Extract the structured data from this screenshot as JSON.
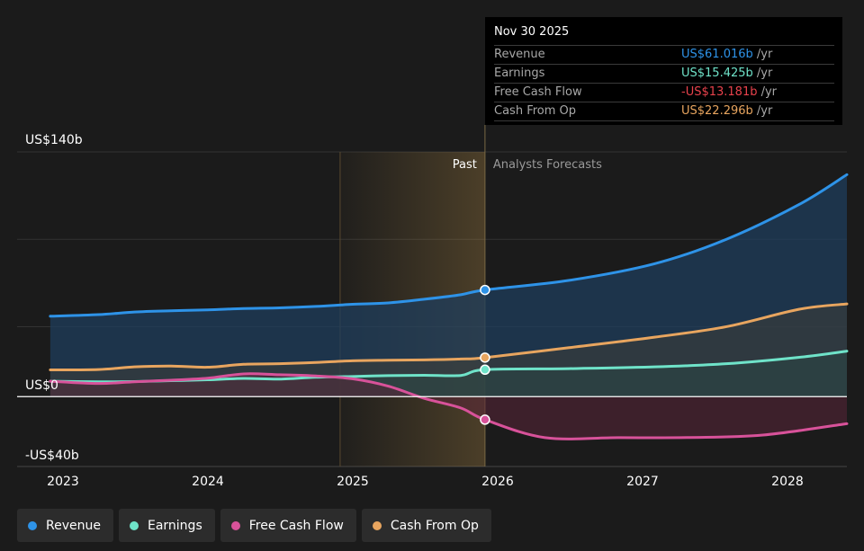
{
  "chart_data": {
    "type": "area",
    "x_ticks": [
      "2023",
      "2024",
      "2025",
      "2026",
      "2027",
      "2028"
    ],
    "y_ticks": [
      "US$140b",
      "US$0",
      "-US$40b"
    ],
    "ylim": [
      -40,
      140
    ],
    "past_label": "Past",
    "forecast_label": "Analysts Forecasts",
    "divider_date": "2025-11-30",
    "past_band_start": "2024-11-30",
    "series": [
      {
        "name": "Revenue",
        "color": "#2e93e8",
        "points": [
          [
            "2022-11-30",
            46.0
          ],
          [
            "2023-03-31",
            46.9
          ],
          [
            "2023-06-30",
            48.4
          ],
          [
            "2023-09-30",
            49.1
          ],
          [
            "2023-12-31",
            49.6
          ],
          [
            "2024-03-31",
            50.4
          ],
          [
            "2024-06-30",
            50.8
          ],
          [
            "2024-09-30",
            51.6
          ],
          [
            "2024-12-31",
            52.8
          ],
          [
            "2025-03-31",
            53.6
          ],
          [
            "2025-06-30",
            55.7
          ],
          [
            "2025-09-30",
            58.3
          ],
          [
            "2025-11-30",
            61.0
          ],
          [
            "2026-06-30",
            66.5
          ],
          [
            "2027-01-31",
            76.0
          ],
          [
            "2027-07-31",
            90.0
          ],
          [
            "2028-01-31",
            110.0
          ],
          [
            "2028-05-31",
            127.0
          ]
        ]
      },
      {
        "name": "Earnings",
        "color": "#6fe3c9",
        "points": [
          [
            "2022-11-30",
            8.8
          ],
          [
            "2023-03-31",
            8.5
          ],
          [
            "2023-06-30",
            8.6
          ],
          [
            "2023-09-30",
            9.1
          ],
          [
            "2023-12-31",
            9.6
          ],
          [
            "2024-03-31",
            10.4
          ],
          [
            "2024-06-30",
            10.0
          ],
          [
            "2024-09-30",
            11.1
          ],
          [
            "2024-12-31",
            11.5
          ],
          [
            "2025-03-31",
            12.0
          ],
          [
            "2025-06-30",
            12.2
          ],
          [
            "2025-09-30",
            12.1
          ],
          [
            "2025-11-30",
            15.4
          ],
          [
            "2026-06-30",
            16.0
          ],
          [
            "2027-01-31",
            17.0
          ],
          [
            "2027-07-31",
            18.8
          ],
          [
            "2028-01-31",
            22.5
          ],
          [
            "2028-05-31",
            26.0
          ]
        ]
      },
      {
        "name": "Free Cash Flow",
        "color": "#d8529a",
        "points": [
          [
            "2022-11-30",
            8.8
          ],
          [
            "2023-03-31",
            7.5
          ],
          [
            "2023-06-30",
            8.5
          ],
          [
            "2023-09-30",
            9.4
          ],
          [
            "2023-12-31",
            10.5
          ],
          [
            "2024-03-31",
            13.0
          ],
          [
            "2024-06-30",
            12.5
          ],
          [
            "2024-09-30",
            11.8
          ],
          [
            "2024-12-31",
            10.2
          ],
          [
            "2025-03-31",
            6.0
          ],
          [
            "2025-06-30",
            -1.0
          ],
          [
            "2025-09-30",
            -6.5
          ],
          [
            "2025-11-30",
            -13.2
          ],
          [
            "2026-04-30",
            -23.5
          ],
          [
            "2026-10-31",
            -23.5
          ],
          [
            "2027-04-30",
            -23.4
          ],
          [
            "2027-10-31",
            -22.0
          ],
          [
            "2028-05-31",
            -15.5
          ]
        ]
      },
      {
        "name": "Cash From Op",
        "color": "#e8a55f",
        "points": [
          [
            "2022-11-30",
            15.3
          ],
          [
            "2023-03-31",
            15.5
          ],
          [
            "2023-06-30",
            17.0
          ],
          [
            "2023-09-30",
            17.5
          ],
          [
            "2023-12-31",
            16.8
          ],
          [
            "2024-03-31",
            18.5
          ],
          [
            "2024-06-30",
            18.8
          ],
          [
            "2024-09-30",
            19.5
          ],
          [
            "2024-12-31",
            20.5
          ],
          [
            "2025-03-31",
            20.8
          ],
          [
            "2025-06-30",
            21.0
          ],
          [
            "2025-09-30",
            21.5
          ],
          [
            "2025-11-30",
            22.3
          ],
          [
            "2026-06-30",
            28.0
          ],
          [
            "2027-01-31",
            34.0
          ],
          [
            "2027-07-31",
            40.0
          ],
          [
            "2028-01-31",
            50.0
          ],
          [
            "2028-05-31",
            53.0
          ]
        ]
      }
    ]
  },
  "tooltip": {
    "date": "Nov 30 2025",
    "rows": [
      {
        "label": "Revenue",
        "value": "US$61.016b",
        "unit": "/yr",
        "color": "#2e93e8"
      },
      {
        "label": "Earnings",
        "value": "US$15.425b",
        "unit": "/yr",
        "color": "#6fe3c9"
      },
      {
        "label": "Free Cash Flow",
        "value": "-US$13.181b",
        "unit": "/yr",
        "color": "#e8424c"
      },
      {
        "label": "Cash From Op",
        "value": "US$22.296b",
        "unit": "/yr",
        "color": "#e8a55f"
      }
    ]
  },
  "legend": [
    {
      "label": "Revenue",
      "color": "#2e93e8"
    },
    {
      "label": "Earnings",
      "color": "#6fe3c9"
    },
    {
      "label": "Free Cash Flow",
      "color": "#d8529a"
    },
    {
      "label": "Cash From Op",
      "color": "#e8a55f"
    }
  ]
}
